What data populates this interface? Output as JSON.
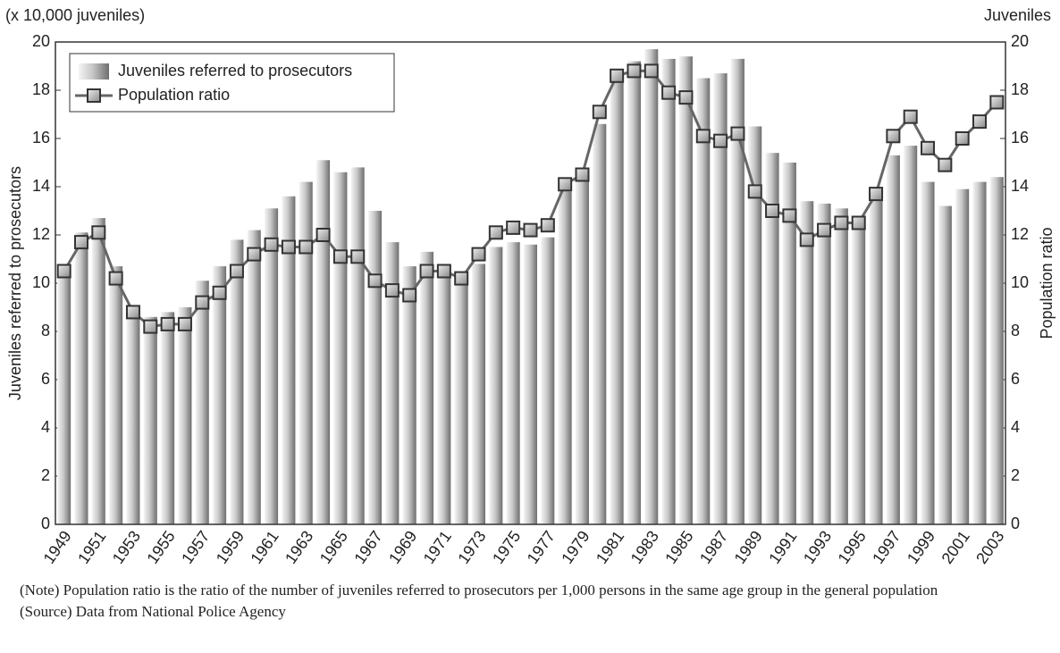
{
  "chart_data": {
    "type": "bar-line",
    "y_unit_label": "(x 10,000 juveniles)",
    "y2_unit_label": "Juveniles",
    "ylabel": "Juveniles referred to prosecutors",
    "y2label": "Population ratio",
    "categories": [
      "1949",
      null,
      "1951",
      null,
      "1953",
      null,
      "1955",
      null,
      "1957",
      null,
      "1959",
      null,
      "1961",
      null,
      "1963",
      null,
      "1965",
      null,
      "1967",
      null,
      "1969",
      null,
      "1971",
      null,
      "1973",
      null,
      "1975",
      null,
      "1977",
      null,
      "1979",
      null,
      "1981",
      null,
      "1983",
      null,
      "1985",
      null,
      "1987",
      null,
      "1989",
      null,
      "1991",
      null,
      "1993",
      null,
      "1995",
      null,
      "1997",
      null,
      "1999",
      null,
      "2001",
      null,
      "2003"
    ],
    "series": [
      {
        "name": "Juveniles referred to prosecutors",
        "type": "bar",
        "axis": "y",
        "color": "#aaaaaa",
        "values": [
          10.6,
          12.1,
          12.7,
          10.7,
          8.7,
          8.6,
          8.8,
          9.0,
          10.1,
          10.7,
          11.8,
          12.2,
          13.1,
          13.6,
          14.2,
          15.1,
          14.6,
          14.8,
          13.0,
          11.7,
          10.7,
          11.3,
          10.5,
          10.4,
          10.8,
          11.5,
          11.7,
          11.6,
          11.9,
          13.8,
          14.4,
          16.6,
          18.5,
          19.2,
          19.7,
          19.3,
          19.4,
          18.5,
          18.7,
          19.3,
          16.5,
          15.4,
          15.0,
          13.4,
          13.3,
          13.1,
          12.6,
          13.5,
          15.3,
          15.7,
          14.2,
          13.2,
          13.9,
          14.2,
          14.4
        ]
      },
      {
        "name": "Population ratio",
        "type": "line",
        "axis": "y2",
        "color": "#666666",
        "values": [
          10.5,
          11.7,
          12.1,
          10.2,
          8.8,
          8.2,
          8.3,
          8.3,
          9.2,
          9.6,
          10.5,
          11.2,
          11.6,
          11.5,
          11.5,
          12.0,
          11.1,
          11.1,
          10.1,
          9.7,
          9.5,
          10.5,
          10.5,
          10.2,
          11.2,
          12.1,
          12.3,
          12.2,
          12.4,
          14.1,
          14.5,
          17.1,
          18.6,
          18.8,
          18.8,
          17.9,
          17.7,
          16.1,
          15.9,
          16.2,
          13.8,
          13.0,
          12.8,
          11.8,
          12.2,
          12.5,
          12.5,
          13.7,
          16.1,
          16.9,
          15.6,
          14.9,
          16.0,
          16.7,
          17.5
        ]
      }
    ],
    "ylim": [
      0,
      20
    ],
    "yticks": [
      0,
      2,
      4,
      6,
      8,
      10,
      12,
      14,
      16,
      18,
      20
    ],
    "y2lim": [
      0,
      20
    ],
    "y2ticks": [
      0,
      2,
      4,
      6,
      8,
      10,
      12,
      14,
      16,
      18,
      20
    ],
    "legend": "upper left",
    "notes": [
      "(Note) Population ratio is the ratio of the number of juveniles referred to prosecutors per 1,000 persons in the same age group in the general population",
      "(Source) Data from National Police Agency"
    ]
  }
}
